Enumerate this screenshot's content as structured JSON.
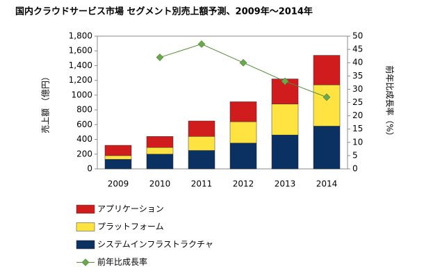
{
  "chart_data": {
    "type": "bar",
    "title": "国内クラウドサービス市場 セグメント別売上額予測、2009年～2014年",
    "y_label": "売上額 （億円）",
    "y2_label": "前年比成長率（%）",
    "categories": [
      "2009",
      "2010",
      "2011",
      "2012",
      "2013",
      "2014"
    ],
    "ylim": [
      0,
      1800
    ],
    "yticks": [
      0,
      200,
      400,
      600,
      800,
      1000,
      {
        "value": 1200,
        "label": "1,200"
      },
      {
        "value": 1400,
        "label": "1,400"
      },
      {
        "value": 1600,
        "label": "1,600"
      },
      {
        "value": 1800,
        "label": "1,800"
      }
    ],
    "y2lim": [
      0,
      50
    ],
    "y2ticks": [
      0,
      5,
      10,
      15,
      20,
      25,
      30,
      35,
      40,
      45,
      50
    ],
    "series": [
      {
        "name": "システムインフラストラクチャ",
        "color": "#0b3162",
        "values": [
          130,
          200,
          250,
          350,
          460,
          580
        ]
      },
      {
        "name": "プラットフォーム",
        "color": "#ffe340",
        "values": [
          50,
          90,
          190,
          290,
          420,
          560
        ]
      },
      {
        "name": "アプリケーション",
        "color": "#d01c1c",
        "values": [
          140,
          150,
          210,
          270,
          340,
          400
        ]
      },
      {
        "name": "前年比成長率",
        "type": "line",
        "axis": "y2",
        "color": "#558a3a",
        "marker_color": "#6aa84f",
        "values": [
          null,
          42,
          47,
          40,
          33,
          27
        ]
      }
    ]
  }
}
